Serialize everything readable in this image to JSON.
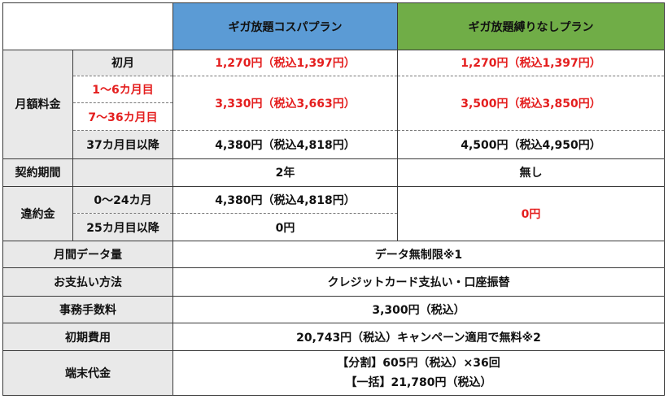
{
  "header": {
    "plan1": "ギガ放題コスパプラン",
    "plan2": "ギガ放題縛りなしプラン"
  },
  "monthly_fee": {
    "label": "月額料金",
    "first_month": {
      "label": "初月",
      "plan1": "1,270円（税込1,397円）",
      "plan2": "1,270円（税込1,397円）"
    },
    "month_1_6": {
      "label": "1～6カ月目"
    },
    "month_7_36": {
      "label": "7～36カ月目"
    },
    "months_1_36_prices": {
      "plan1": "3,330円（税込3,663円）",
      "plan2": "3,500円（税込3,850円）"
    },
    "month_37_plus": {
      "label": "37カ月目以降",
      "plan1": "4,380円（税込4,818円）",
      "plan2": "4,500円（税込4,950円）"
    }
  },
  "contract_period": {
    "label": "契約期間",
    "plan1": "2年",
    "plan2": "無し"
  },
  "cancellation_fee": {
    "label": "違約金",
    "month_0_24": {
      "label": "0～24カ月",
      "plan1": "4,380円（税込4,818円）"
    },
    "month_25_plus": {
      "label": "25カ月目以降",
      "plan1": "0円"
    },
    "plan2": "0円"
  },
  "data_volume": {
    "label": "月間データ量",
    "value": "データ無制限※1"
  },
  "payment_method": {
    "label": "お支払い方法",
    "value": "クレジットカード支払い・口座振替"
  },
  "admin_fee": {
    "label": "事務手数料",
    "value": "3,300円（税込）"
  },
  "initial_cost": {
    "label": "初期費用",
    "value": "20,743円（税込）キャンペーン適用で無料※2"
  },
  "device_cost": {
    "label": "端末代金",
    "line1": "【分割】605円（税込）×36回",
    "line2": "【一括】21,780円（税込）"
  }
}
